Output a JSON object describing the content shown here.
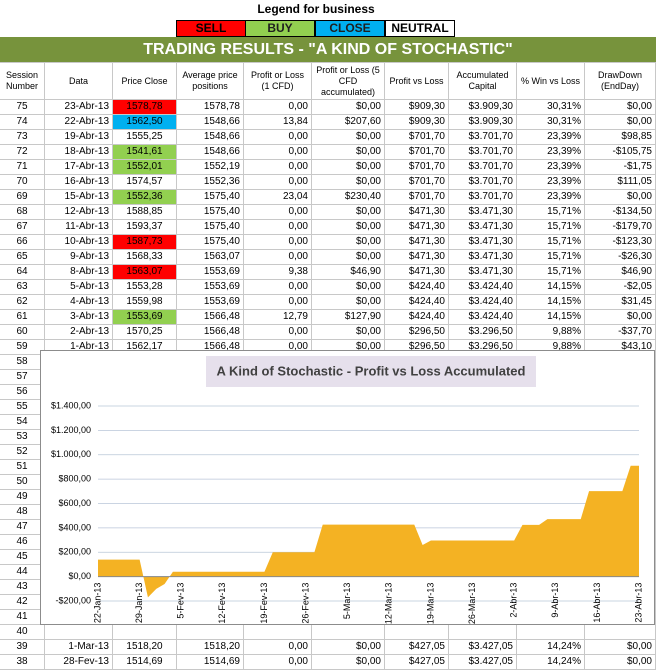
{
  "legend": {
    "title": "Legend for business",
    "items": [
      {
        "label": "SELL",
        "color": "#ff0000"
      },
      {
        "label": "BUY",
        "color": "#92d050"
      },
      {
        "label": "CLOSE",
        "color": "#00b0f0"
      },
      {
        "label": "NEUTRAL",
        "color": "#ffffff"
      }
    ]
  },
  "banner": "TRADING RESULTS - \"A KIND OF STOCHASTIC\"",
  "table": {
    "headers": [
      "Session Number",
      "Data",
      "Price Close",
      "Average price positions",
      "Profit or Loss (1 CFD)",
      "Profit or Loss (5 CFD accumulated)",
      "Profit vs Loss",
      "Accumulated Capital",
      "% Win vs Loss",
      "DrawDown (EndDay)"
    ],
    "rows": [
      {
        "cells": [
          "75",
          "23-Abr-13",
          "1578,78",
          "1578,78",
          "0,00",
          "$0,00",
          "$909,30",
          "$3.909,30",
          "30,31%",
          "$0,00"
        ],
        "price_color": "#ff0000"
      },
      {
        "cells": [
          "74",
          "22-Abr-13",
          "1562,50",
          "1548,66",
          "13,84",
          "$207,60",
          "$909,30",
          "$3.909,30",
          "30,31%",
          "$0,00"
        ],
        "price_color": "#00b0f0"
      },
      {
        "cells": [
          "73",
          "19-Abr-13",
          "1555,25",
          "1548,66",
          "0,00",
          "$0,00",
          "$701,70",
          "$3.701,70",
          "23,39%",
          "$98,85"
        ]
      },
      {
        "cells": [
          "72",
          "18-Abr-13",
          "1541,61",
          "1548,66",
          "0,00",
          "$0,00",
          "$701,70",
          "$3.701,70",
          "23,39%",
          "-$105,75"
        ],
        "price_color": "#92d050"
      },
      {
        "cells": [
          "71",
          "17-Abr-13",
          "1552,01",
          "1552,19",
          "0,00",
          "$0,00",
          "$701,70",
          "$3.701,70",
          "23,39%",
          "-$1,75"
        ],
        "price_color": "#92d050"
      },
      {
        "cells": [
          "70",
          "16-Abr-13",
          "1574,57",
          "1552,36",
          "0,00",
          "$0,00",
          "$701,70",
          "$3.701,70",
          "23,39%",
          "$111,05"
        ]
      },
      {
        "cells": [
          "69",
          "15-Abr-13",
          "1552,36",
          "1575,40",
          "23,04",
          "$230,40",
          "$701,70",
          "$3.701,70",
          "23,39%",
          "$0,00"
        ],
        "price_color": "#92d050"
      },
      {
        "cells": [
          "68",
          "12-Abr-13",
          "1588,85",
          "1575,40",
          "0,00",
          "$0,00",
          "$471,30",
          "$3.471,30",
          "15,71%",
          "-$134,50"
        ]
      },
      {
        "cells": [
          "67",
          "11-Abr-13",
          "1593,37",
          "1575,40",
          "0,00",
          "$0,00",
          "$471,30",
          "$3.471,30",
          "15,71%",
          "-$179,70"
        ]
      },
      {
        "cells": [
          "66",
          "10-Abr-13",
          "1587,73",
          "1575,40",
          "0,00",
          "$0,00",
          "$471,30",
          "$3.471,30",
          "15,71%",
          "-$123,30"
        ],
        "price_color": "#ff0000"
      },
      {
        "cells": [
          "65",
          "9-Abr-13",
          "1568,33",
          "1563,07",
          "0,00",
          "$0,00",
          "$471,30",
          "$3.471,30",
          "15,71%",
          "-$26,30"
        ]
      },
      {
        "cells": [
          "64",
          "8-Abr-13",
          "1563,07",
          "1553,69",
          "9,38",
          "$46,90",
          "$471,30",
          "$3.471,30",
          "15,71%",
          "$46,90"
        ],
        "price_color": "#ff0000"
      },
      {
        "cells": [
          "63",
          "5-Abr-13",
          "1553,28",
          "1553,69",
          "0,00",
          "$0,00",
          "$424,40",
          "$3.424,40",
          "14,15%",
          "-$2,05"
        ]
      },
      {
        "cells": [
          "62",
          "4-Abr-13",
          "1559,98",
          "1553,69",
          "0,00",
          "$0,00",
          "$424,40",
          "$3.424,40",
          "14,15%",
          "$31,45"
        ]
      },
      {
        "cells": [
          "61",
          "3-Abr-13",
          "1553,69",
          "1566,48",
          "12,79",
          "$127,90",
          "$424,40",
          "$3.424,40",
          "14,15%",
          "$0,00"
        ],
        "price_color": "#92d050"
      },
      {
        "cells": [
          "60",
          "2-Abr-13",
          "1570,25",
          "1566,48",
          "0,00",
          "$0,00",
          "$296,50",
          "$3.296,50",
          "9,88%",
          "-$37,70"
        ]
      },
      {
        "cells": [
          "59",
          "1-Abr-13",
          "1562,17",
          "1566,48",
          "0,00",
          "$0,00",
          "$296,50",
          "$3.296,50",
          "9,88%",
          "$43,10"
        ]
      },
      {
        "cells": [
          "58"
        ]
      },
      {
        "cells": [
          "57"
        ]
      },
      {
        "cells": [
          "56"
        ]
      },
      {
        "cells": [
          "55"
        ]
      },
      {
        "cells": [
          "54"
        ]
      },
      {
        "cells": [
          "53"
        ]
      },
      {
        "cells": [
          "52"
        ]
      },
      {
        "cells": [
          "51"
        ]
      },
      {
        "cells": [
          "50"
        ]
      },
      {
        "cells": [
          "49"
        ]
      },
      {
        "cells": [
          "48"
        ]
      },
      {
        "cells": [
          "47"
        ]
      },
      {
        "cells": [
          "46"
        ]
      },
      {
        "cells": [
          "45"
        ]
      },
      {
        "cells": [
          "44"
        ]
      },
      {
        "cells": [
          "43"
        ]
      },
      {
        "cells": [
          "42"
        ]
      },
      {
        "cells": [
          "41"
        ]
      },
      {
        "cells": [
          "40"
        ]
      },
      {
        "cells": [
          "39",
          "1-Mar-13",
          "1518,20",
          "1518,20",
          "0,00",
          "$0,00",
          "$427,05",
          "$3.427,05",
          "14,24%",
          "$0,00"
        ]
      },
      {
        "cells": [
          "38",
          "28-Fev-13",
          "1514,69",
          "1514,69",
          "0,00",
          "$0,00",
          "$427,05",
          "$3.427,05",
          "14,24%",
          "$0,00"
        ]
      }
    ]
  },
  "chart_data": {
    "type": "area",
    "title": "A Kind of Stochastic - Profit vs Loss Accumulated",
    "categories": [
      "22-Jan-13",
      null,
      null,
      null,
      null,
      "29-Jan-13",
      null,
      null,
      null,
      null,
      "5-Fev-13",
      null,
      null,
      null,
      null,
      "12-Fev-13",
      null,
      null,
      null,
      null,
      "19-Fev-13",
      null,
      null,
      null,
      null,
      "26-Fev-13",
      null,
      null,
      null,
      null,
      "5-Mar-13",
      null,
      null,
      null,
      null,
      "12-Mar-13",
      null,
      null,
      null,
      null,
      "19-Mar-13",
      null,
      null,
      null,
      null,
      "26-Mar-13",
      null,
      null,
      null,
      null,
      "2-Abr-13",
      null,
      null,
      null,
      null,
      "9-Abr-13",
      null,
      null,
      null,
      null,
      "16-Abr-13",
      null,
      null,
      null,
      null,
      "23-Abr-13"
    ],
    "series": [
      {
        "name": "Profit vs Loss",
        "color": "#f4b223",
        "values": [
          140,
          140,
          140,
          140,
          140,
          140,
          -170,
          -100,
          -60,
          40,
          40,
          40,
          40,
          40,
          40,
          40,
          40,
          40,
          40,
          40,
          40,
          200,
          200,
          200,
          200,
          200,
          200,
          427.05,
          427.05,
          427.05,
          427.05,
          427.05,
          427.05,
          427.05,
          427.05,
          427.05,
          427.05,
          427.05,
          427.05,
          260,
          296.5,
          296.5,
          296.5,
          296.5,
          296.5,
          296.5,
          296.5,
          296.5,
          296.5,
          296.5,
          296.5,
          424.4,
          424.4,
          424.4,
          471.3,
          471.3,
          471.3,
          471.3,
          471.3,
          701.7,
          701.7,
          701.7,
          701.7,
          701.7,
          909.3,
          909.3
        ]
      }
    ],
    "ylim": [
      -200,
      1400
    ],
    "yticks": [
      {
        "value": -200,
        "label": "-$200,00"
      },
      {
        "value": 0,
        "label": "$0,00"
      },
      {
        "value": 200,
        "label": "$200,00"
      },
      {
        "value": 400,
        "label": "$400,00"
      },
      {
        "value": 600,
        "label": "$600,00"
      },
      {
        "value": 800,
        "label": "$800,00"
      },
      {
        "value": 1000,
        "label": "$1.000,00"
      },
      {
        "value": 1200,
        "label": "$1.200,00"
      },
      {
        "value": 1400,
        "label": "$1.400,00"
      }
    ],
    "grid": true,
    "title_background": "#e6e0ec"
  }
}
